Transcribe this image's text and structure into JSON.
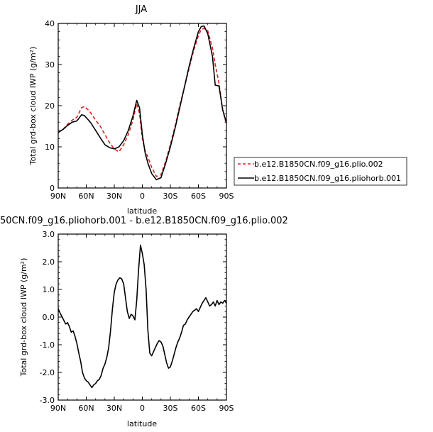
{
  "chart_data": [
    {
      "type": "line",
      "title": "JJA",
      "xlabel": "latitude",
      "ylabel": "Total grd-box cloud IWP (g/m²)",
      "xlim": [
        90,
        -90
      ],
      "ylim": [
        0,
        40
      ],
      "x_tick_labels": [
        "90N",
        "60N",
        "30N",
        "0",
        "30S",
        "60S",
        "90S"
      ],
      "y_tick_labels": [
        "0",
        "10",
        "20",
        "30",
        "40"
      ],
      "legend_position": "right",
      "series": [
        {
          "name": "b.e12.B1850CN.f09_g16.plio.002",
          "color": "#d62020",
          "dash": "dashed",
          "x": [
            90,
            85,
            80,
            75,
            70,
            65,
            62,
            58,
            55,
            50,
            45,
            40,
            35,
            30,
            25,
            20,
            15,
            10,
            6,
            3,
            0,
            -3,
            -6,
            -10,
            -15,
            -20,
            -25,
            -30,
            -35,
            -40,
            -45,
            -50,
            -55,
            -60,
            -63,
            -66,
            -70,
            -75,
            -78,
            -82,
            -86,
            -90
          ],
          "values": [
            13.5,
            14.2,
            15.5,
            16.5,
            17.2,
            19.5,
            19.8,
            19,
            18.2,
            16.5,
            15,
            13,
            11,
            9.5,
            8.8,
            10.5,
            13,
            16.5,
            20.5,
            18,
            12,
            9,
            7.5,
            5,
            2.8,
            3.2,
            6.5,
            10.5,
            15,
            20,
            24.5,
            29,
            33.5,
            37,
            38.5,
            38.8,
            38.2,
            34,
            30,
            25.5,
            19,
            15.5
          ]
        },
        {
          "name": "b.e12.B1850CN.f09_g16.pliohorb.001",
          "color": "#000000",
          "dash": "solid",
          "x": [
            90,
            85,
            80,
            75,
            70,
            65,
            62,
            58,
            55,
            50,
            45,
            40,
            35,
            30,
            25,
            20,
            15,
            10,
            6,
            3,
            0,
            -3,
            -6,
            -10,
            -15,
            -20,
            -25,
            -30,
            -35,
            -40,
            -45,
            -50,
            -55,
            -60,
            -63,
            -66,
            -70,
            -75,
            -78,
            -82,
            -86,
            -90
          ],
          "values": [
            13.5,
            14.2,
            15.2,
            16,
            16.3,
            17.8,
            17.6,
            16.6,
            15.8,
            14,
            12.2,
            10.5,
            9.8,
            9.5,
            10,
            11.5,
            14,
            17.5,
            21.3,
            19.5,
            13,
            8.5,
            6,
            3.5,
            2.0,
            2.5,
            6,
            10,
            14.5,
            19.5,
            24.5,
            29.5,
            34,
            38,
            39.2,
            39.4,
            37.5,
            32,
            25,
            24.8,
            19,
            15.8
          ]
        }
      ]
    },
    {
      "type": "line",
      "title": "50CN.f09_g16.pliohorb.001 - b.e12.B1850CN.f09_g16.plio.002",
      "xlabel": "latitude",
      "ylabel": "Total grd-box cloud IWP (g/m²)",
      "xlim": [
        90,
        -90
      ],
      "ylim": [
        -3,
        3
      ],
      "x_tick_labels": [
        "90N",
        "60N",
        "30N",
        "0",
        "30S",
        "60S",
        "90S"
      ],
      "y_tick_labels": [
        "3.0",
        "2.0",
        "1.0",
        "0.0",
        "-1.0",
        "-2.0",
        "-3.0"
      ],
      "series": [
        {
          "color": "#000000",
          "x": [
            90,
            88,
            85,
            82,
            80,
            78,
            76,
            74,
            72,
            70,
            68,
            66,
            64,
            62,
            60,
            58,
            56,
            54,
            52,
            50,
            48,
            46,
            44,
            42,
            40,
            38,
            36,
            34,
            32,
            30,
            28,
            26,
            24,
            22,
            20,
            18,
            16,
            14,
            12,
            10,
            8,
            6,
            4,
            2,
            0,
            -2,
            -4,
            -6,
            -8,
            -10,
            -12,
            -14,
            -16,
            -18,
            -20,
            -22,
            -24,
            -26,
            -28,
            -30,
            -32,
            -34,
            -36,
            -38,
            -40,
            -42,
            -44,
            -46,
            -48,
            -50,
            -52,
            -54,
            -56,
            -58,
            -60,
            -62,
            -64,
            -66,
            -68,
            -70,
            -72,
            -74,
            -76,
            -78,
            -80,
            -82,
            -84,
            -86,
            -88,
            -90
          ],
          "values": [
            0.3,
            0.15,
            -0.05,
            -0.25,
            -0.2,
            -0.35,
            -0.55,
            -0.5,
            -0.7,
            -0.95,
            -1.3,
            -1.6,
            -2.0,
            -2.2,
            -2.3,
            -2.35,
            -2.45,
            -2.55,
            -2.45,
            -2.4,
            -2.3,
            -2.25,
            -2.1,
            -1.85,
            -1.7,
            -1.45,
            -1.1,
            -0.5,
            0.3,
            0.9,
            1.2,
            1.35,
            1.42,
            1.38,
            1.2,
            0.7,
            0.2,
            -0.05,
            0.1,
            0.05,
            -0.1,
            0.6,
            1.7,
            2.6,
            2.3,
            1.9,
            1.0,
            -0.5,
            -1.3,
            -1.4,
            -1.25,
            -1.1,
            -0.95,
            -0.85,
            -0.9,
            -1.05,
            -1.35,
            -1.65,
            -1.85,
            -1.8,
            -1.6,
            -1.35,
            -1.1,
            -0.9,
            -0.75,
            -0.55,
            -0.3,
            -0.25,
            -0.1,
            0.0,
            0.1,
            0.2,
            0.25,
            0.3,
            0.2,
            0.35,
            0.5,
            0.6,
            0.7,
            0.55,
            0.4,
            0.45,
            0.55,
            0.4,
            0.6,
            0.45,
            0.55,
            0.5,
            0.6,
            0.5
          ]
        }
      ]
    }
  ]
}
